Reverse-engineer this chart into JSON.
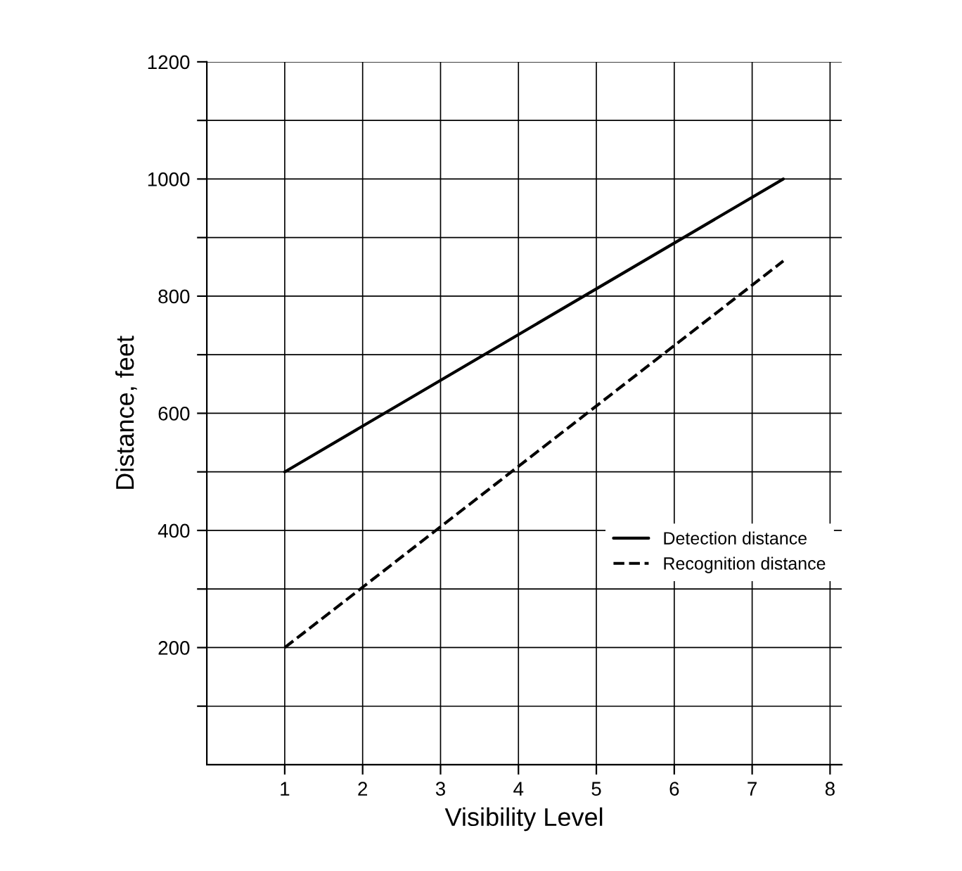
{
  "chart_data": {
    "type": "line",
    "xlabel": "Visibility Level",
    "ylabel": "Distance, feet",
    "x": [
      1,
      7.4
    ],
    "series": [
      {
        "name": "Detection distance",
        "color": "#000000",
        "values": [
          500,
          1000
        ],
        "line_style": "solid"
      },
      {
        "name": "Recognition distance",
        "color": "#000000",
        "values": [
          200,
          860
        ],
        "line_style": "dashed"
      }
    ],
    "xlim": [
      0,
      8.15
    ],
    "xticks": [
      1,
      2,
      3,
      4,
      5,
      6,
      7,
      8
    ],
    "ylim": [
      0,
      1200
    ],
    "yticks": [
      {
        "value": 100,
        "label": null
      },
      200,
      {
        "value": 300,
        "label": null
      },
      400,
      {
        "value": 500,
        "label": null
      },
      600,
      {
        "value": 700,
        "label": null
      },
      800,
      {
        "value": 900,
        "label": null
      },
      1000,
      {
        "value": 1100,
        "label": null
      },
      1200
    ],
    "grid": true,
    "legend": "bottom right",
    "marker": "none"
  }
}
